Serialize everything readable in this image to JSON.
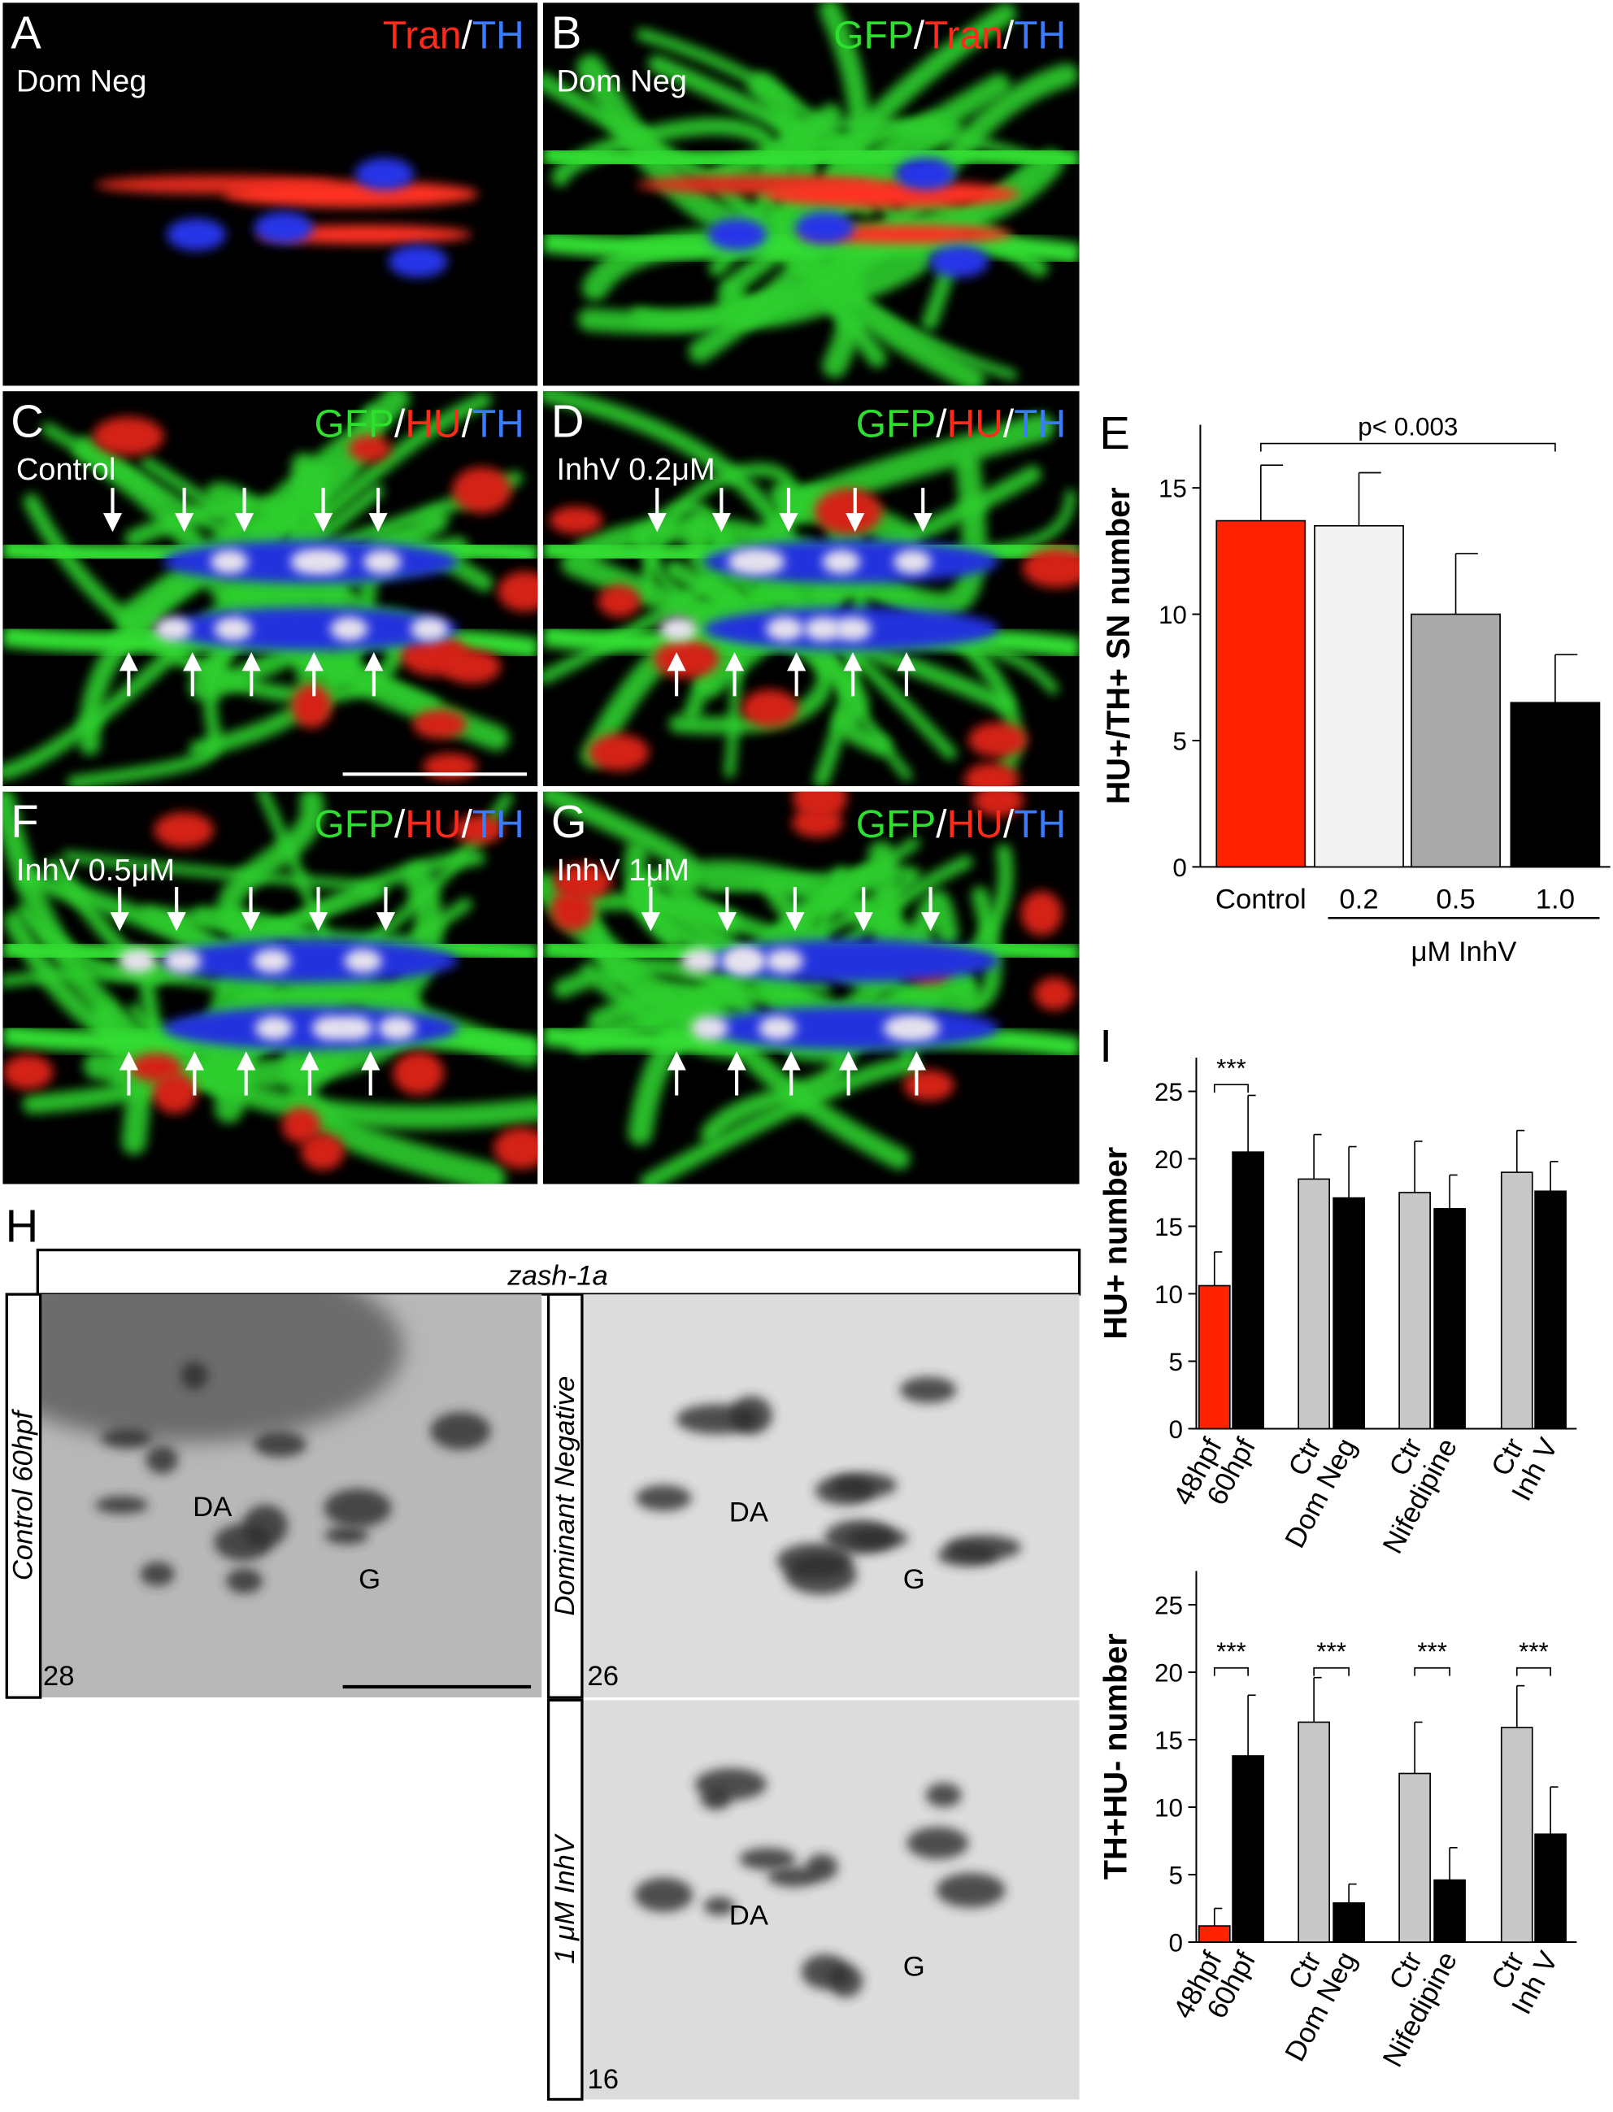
{
  "panels": {
    "A": {
      "label": "A",
      "condition": "Dom Neg",
      "stain": [
        {
          "text": "Tran",
          "color": "#ff2a1a"
        },
        {
          "text": "/",
          "color": "#ffffff"
        },
        {
          "text": "TH",
          "color": "#3a7bff"
        }
      ]
    },
    "B": {
      "label": "B",
      "condition": "Dom Neg",
      "stain": [
        {
          "text": "GFP",
          "color": "#2ee02e"
        },
        {
          "text": "/",
          "color": "#ffffff"
        },
        {
          "text": "Tran",
          "color": "#ff2a1a"
        },
        {
          "text": "/",
          "color": "#ffffff"
        },
        {
          "text": "TH",
          "color": "#3a7bff"
        }
      ]
    },
    "C": {
      "label": "C",
      "condition": "Control",
      "stain": [
        {
          "text": "GFP",
          "color": "#2ee02e"
        },
        {
          "text": "/",
          "color": "#ffffff"
        },
        {
          "text": "HU",
          "color": "#ff2a1a"
        },
        {
          "text": "/",
          "color": "#ffffff"
        },
        {
          "text": "TH",
          "color": "#3a7bff"
        }
      ]
    },
    "D": {
      "label": "D",
      "condition": "InhV 0.2μM",
      "stain": [
        {
          "text": "GFP",
          "color": "#2ee02e"
        },
        {
          "text": "/",
          "color": "#ffffff"
        },
        {
          "text": "HU",
          "color": "#ff2a1a"
        },
        {
          "text": "/",
          "color": "#ffffff"
        },
        {
          "text": "TH",
          "color": "#3a7bff"
        }
      ]
    },
    "E": {
      "label": "E"
    },
    "F": {
      "label": "F",
      "condition": "InhV 0.5μM",
      "stain": [
        {
          "text": "GFP",
          "color": "#2ee02e"
        },
        {
          "text": "/",
          "color": "#ffffff"
        },
        {
          "text": "HU",
          "color": "#ff2a1a"
        },
        {
          "text": "/",
          "color": "#ffffff"
        },
        {
          "text": "TH",
          "color": "#3a7bff"
        }
      ]
    },
    "G": {
      "label": "G",
      "condition": "InhV 1μM",
      "stain": [
        {
          "text": "GFP",
          "color": "#2ee02e"
        },
        {
          "text": "/",
          "color": "#ffffff"
        },
        {
          "text": "HU",
          "color": "#ff2a1a"
        },
        {
          "text": "/",
          "color": "#ffffff"
        },
        {
          "text": "TH",
          "color": "#3a7bff"
        }
      ]
    },
    "H": {
      "label": "H",
      "probe": "zash-1a",
      "images": [
        {
          "condition": "Control 60hpf",
          "count": 28,
          "labels": [
            "DA",
            "G"
          ]
        },
        {
          "condition": "Dominant Negative",
          "count": 26,
          "labels": [
            "DA",
            "G"
          ]
        },
        {
          "condition": "1 μM InhV",
          "count": 16,
          "labels": [
            "DA",
            "G"
          ]
        }
      ]
    },
    "I": {
      "label": "I"
    }
  },
  "chart_data": [
    {
      "type": "bar",
      "ylabel": "HU+/TH+ SN number",
      "xlabel": "μM InhV",
      "categories": [
        "Control",
        "0.2",
        "0.5",
        "1.0"
      ],
      "values": [
        13.7,
        13.5,
        10.0,
        6.5
      ],
      "errors": [
        2.2,
        2.1,
        2.4,
        1.9
      ],
      "colors": [
        "#ff2200",
        "#f2f2f2",
        "#aaaaaa",
        "#000000"
      ],
      "ylim": [
        0,
        17.5
      ],
      "yticks": [
        0,
        5,
        10,
        15
      ],
      "annotations": [
        "p< 0.003"
      ]
    },
    {
      "type": "bar",
      "ylabel": "HU+  number",
      "categories": [
        "48hpf",
        "60hpf",
        "Ctr",
        "Dom Neg",
        "Ctr",
        "Nifedipine",
        "Ctr",
        "Inh V"
      ],
      "values": [
        10.6,
        20.5,
        18.5,
        17.1,
        17.5,
        16.3,
        19.0,
        17.6
      ],
      "errors": [
        2.5,
        4.2,
        3.3,
        3.8,
        3.8,
        2.5,
        3.1,
        2.2
      ],
      "colors": [
        "#ff2200",
        "#000000",
        "#c8c8c8",
        "#000000",
        "#c8c8c8",
        "#000000",
        "#c8c8c8",
        "#000000"
      ],
      "ylim": [
        0,
        27.5
      ],
      "yticks": [
        0,
        5,
        10,
        15,
        20,
        25
      ],
      "annotations": [
        "***"
      ]
    },
    {
      "type": "bar",
      "ylabel": "TH+HU-  number",
      "categories": [
        "48hpf",
        "60hpf",
        "Ctr",
        "Dom Neg",
        "Ctr",
        "Nifedipine",
        "Ctr",
        "Inh V"
      ],
      "values": [
        1.2,
        13.8,
        16.3,
        2.9,
        12.5,
        4.6,
        15.9,
        8.0
      ],
      "errors": [
        1.3,
        4.5,
        3.3,
        1.4,
        3.8,
        2.4,
        3.1,
        3.5
      ],
      "colors": [
        "#ff2200",
        "#000000",
        "#c8c8c8",
        "#000000",
        "#c8c8c8",
        "#000000",
        "#c8c8c8",
        "#000000"
      ],
      "ylim": [
        0,
        27.5
      ],
      "yticks": [
        0,
        5,
        10,
        15,
        20,
        25
      ],
      "annotations": [
        "***",
        "***",
        "***",
        "***"
      ]
    }
  ]
}
